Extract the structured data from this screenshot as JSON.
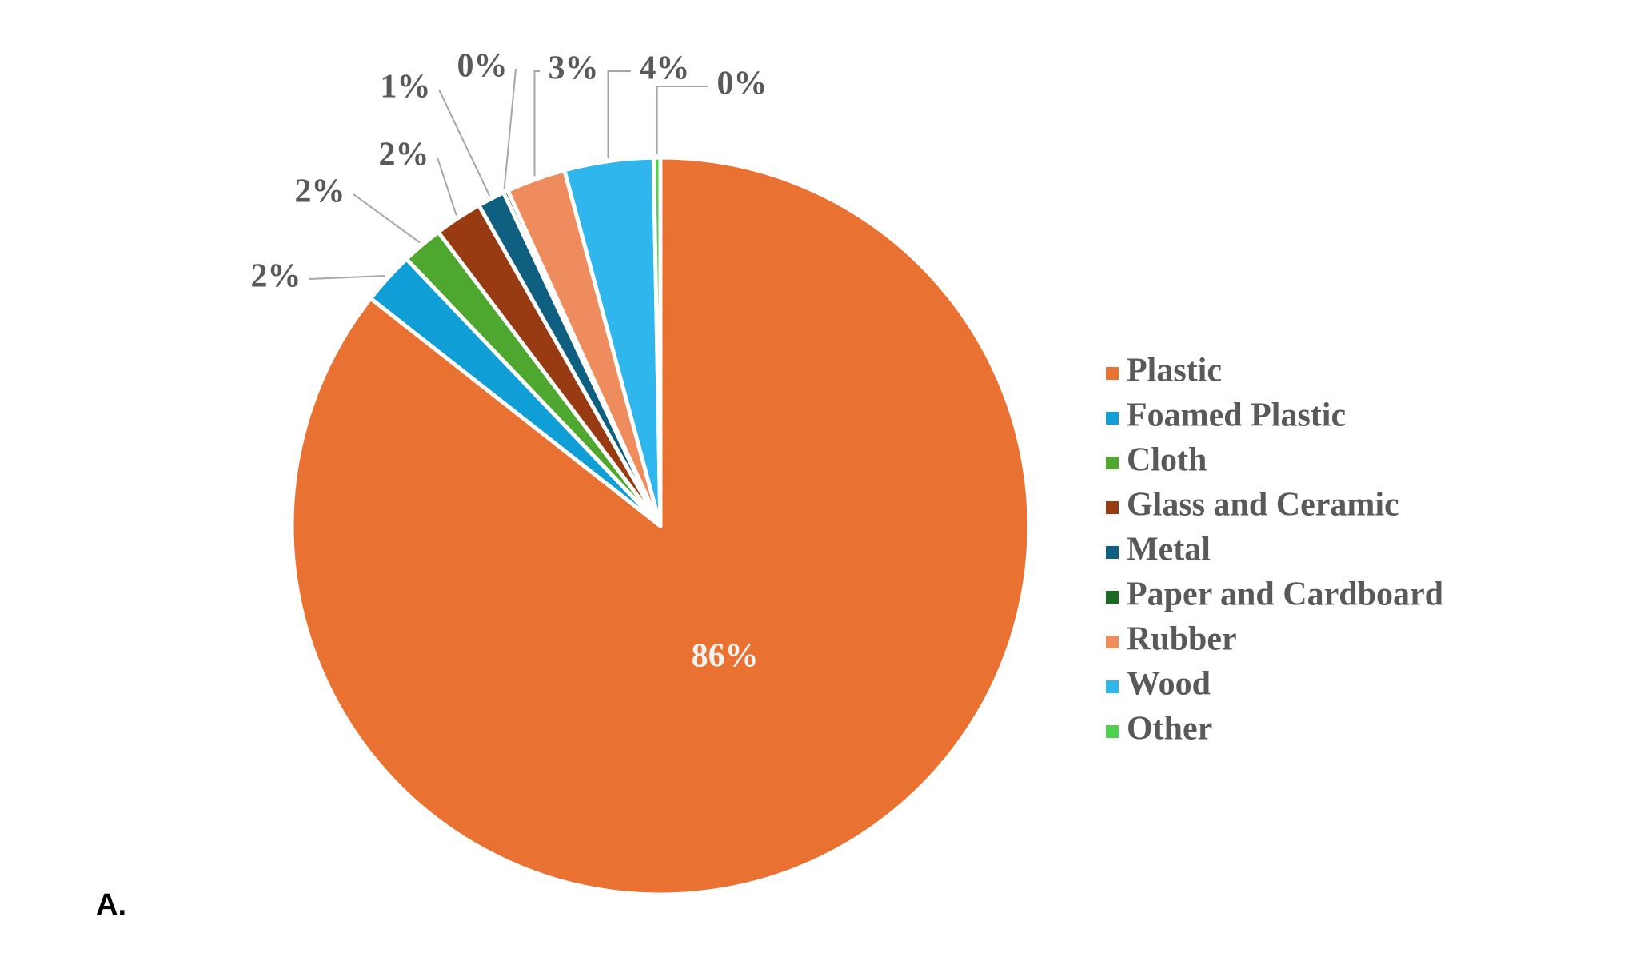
{
  "chart_data": {
    "type": "pie",
    "categories": [
      "Plastic",
      "Foamed Plastic",
      "Cloth",
      "Glass and Ceramic",
      "Metal",
      "Paper and Cardboard",
      "Rubber",
      "Wood",
      "Other"
    ],
    "values": [
      85.6,
      2.3,
      1.8,
      2.1,
      1.2,
      0.2,
      2.6,
      3.9,
      0.3
    ],
    "value_labels": [
      "86%",
      "2%",
      "2%",
      "2%",
      "1%",
      "0%",
      "3%",
      "4%",
      "0%"
    ],
    "colors": [
      "#e97132",
      "#0f9ed5",
      "#4ea72e",
      "#983b12",
      "#0e5f80",
      "#196b24",
      "#ee8c5e",
      "#2fb6ec",
      "#4fd14f"
    ],
    "legend": "right"
  },
  "panel_label": "A."
}
